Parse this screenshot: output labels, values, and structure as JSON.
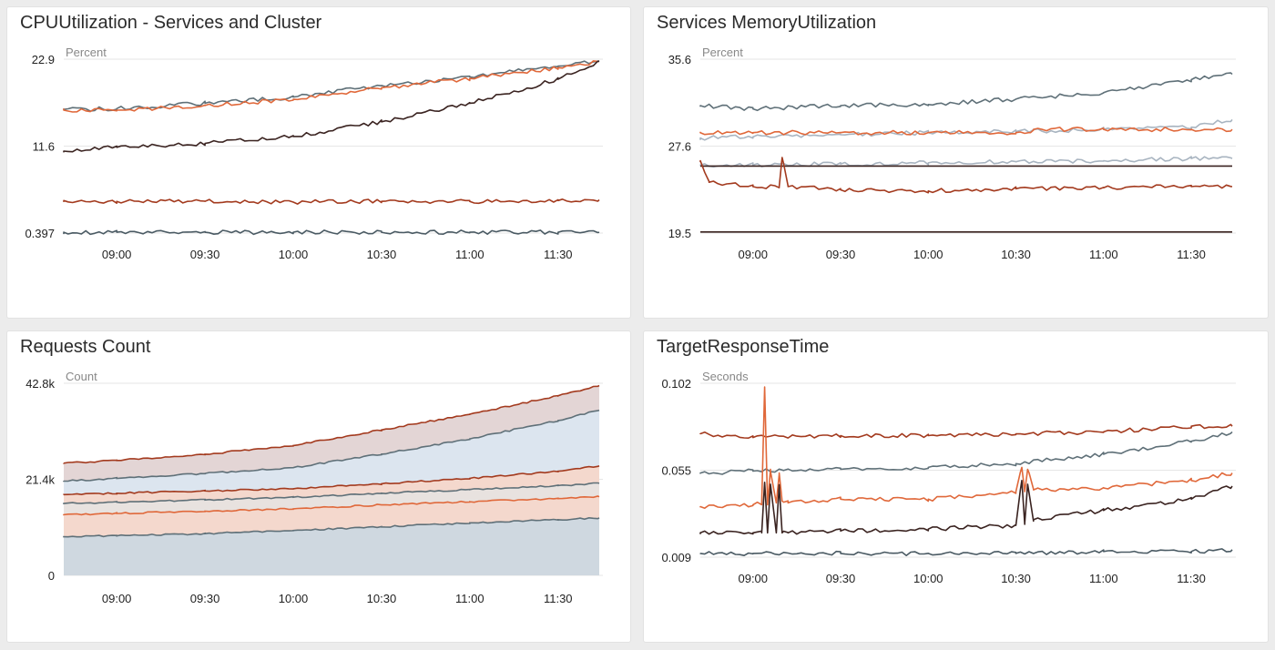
{
  "colors": {
    "page_bg": "#ececec",
    "panel_bg": "#ffffff",
    "grid": "#e6e6e6",
    "slate": "#5f7078",
    "orange": "#e0683a",
    "rust": "#a33a1e",
    "dark": "#3a2320",
    "steel": "#4a5a63",
    "light_slate": "#a8b4c0",
    "tick": "#222222",
    "unit": "#888888"
  },
  "x_ticks": [
    "09:00",
    "09:30",
    "10:00",
    "10:30",
    "11:00",
    "11:30"
  ],
  "panels": [
    {
      "title": "CPUUtilization - Services and Cluster",
      "chart_data": {
        "type": "line",
        "ylabel": "Percent",
        "y_ticks": [
          "22.9",
          "11.6",
          "0.397"
        ],
        "ylim": [
          0.397,
          22.9
        ],
        "x_range": [
          "08:42",
          "11:44"
        ],
        "series": [
          {
            "color": "#5f7078",
            "x": [
              "08:42",
              "09:00",
              "09:30",
              "10:00",
              "10:30",
              "11:00",
              "11:30",
              "11:44"
            ],
            "values": [
              16.4,
              16.5,
              17.2,
              18.0,
              19.5,
              20.6,
              22.0,
              22.7
            ]
          },
          {
            "color": "#e0683a",
            "x": [
              "08:42",
              "09:00",
              "09:30",
              "10:00",
              "10:30",
              "11:00",
              "11:30",
              "11:44"
            ],
            "values": [
              16.3,
              16.3,
              16.9,
              17.7,
              19.2,
              20.4,
              21.8,
              22.6
            ]
          },
          {
            "color": "#3a2320",
            "x": [
              "08:42",
              "09:00",
              "09:30",
              "10:00",
              "10:30",
              "11:00",
              "11:30",
              "11:44"
            ],
            "values": [
              11.0,
              11.5,
              12.0,
              12.9,
              14.8,
              17.2,
              20.3,
              22.6
            ]
          },
          {
            "color": "#a33a1e",
            "x": [
              "08:42",
              "09:00",
              "09:30",
              "10:00",
              "10:30",
              "11:00",
              "11:30",
              "11:44"
            ],
            "values": [
              4.6,
              4.5,
              4.5,
              4.4,
              4.5,
              4.5,
              4.6,
              4.7
            ]
          },
          {
            "color": "#4a5a63",
            "x": [
              "08:42",
              "09:00",
              "09:30",
              "10:00",
              "10:30",
              "11:00",
              "11:30",
              "11:44"
            ],
            "values": [
              0.5,
              0.5,
              0.5,
              0.5,
              0.5,
              0.5,
              0.5,
              0.5
            ]
          }
        ]
      }
    },
    {
      "title": "Services MemoryUtilization",
      "chart_data": {
        "type": "line",
        "ylabel": "Percent",
        "y_ticks": [
          "35.6",
          "27.6",
          "19.5"
        ],
        "ylim": [
          19.5,
          35.6
        ],
        "x_range": [
          "08:42",
          "11:44"
        ],
        "series": [
          {
            "color": "#5f7078",
            "x": [
              "08:42",
              "09:00",
              "09:30",
              "10:00",
              "10:30",
              "11:00",
              "11:30",
              "11:44"
            ],
            "values": [
              31.3,
              31.0,
              31.3,
              31.4,
              31.9,
              32.5,
              33.7,
              34.2
            ]
          },
          {
            "color": "#a8b4c0",
            "x": [
              "08:42",
              "09:00",
              "09:30",
              "10:00",
              "10:30",
              "11:00",
              "11:30",
              "11:44"
            ],
            "values": [
              28.3,
              28.4,
              28.6,
              28.8,
              28.9,
              29.1,
              29.3,
              30.0
            ]
          },
          {
            "color": "#e0683a",
            "x": [
              "08:42",
              "09:00",
              "09:30",
              "10:00",
              "10:30",
              "10:35",
              "10:36",
              "11:00",
              "11:30",
              "11:44"
            ],
            "values": [
              28.8,
              28.8,
              28.8,
              28.8,
              28.8,
              28.8,
              29.1,
              29.1,
              29.1,
              29.1
            ]
          },
          {
            "color": "#a8b4c0",
            "x": [
              "08:42",
              "09:00",
              "09:30",
              "10:00",
              "10:30",
              "11:00",
              "11:30",
              "11:44"
            ],
            "values": [
              25.8,
              25.8,
              25.9,
              26.0,
              26.1,
              26.2,
              26.4,
              26.4
            ]
          },
          {
            "color": "#3a2320",
            "x": [
              "08:42",
              "11:44"
            ],
            "values": [
              25.7,
              25.7
            ]
          },
          {
            "color": "#a33a1e",
            "x": [
              "08:42",
              "08:45",
              "09:00",
              "09:09",
              "09:10",
              "09:12",
              "09:30",
              "10:00",
              "10:30",
              "11:00",
              "11:30",
              "11:44"
            ],
            "values": [
              26.2,
              24.2,
              23.8,
              23.8,
              26.5,
              23.8,
              23.5,
              23.4,
              23.6,
              23.7,
              23.8,
              23.8
            ]
          },
          {
            "color": "#3a2320",
            "x": [
              "08:42",
              "11:44"
            ],
            "values": [
              19.6,
              19.6
            ]
          }
        ]
      }
    },
    {
      "title": "Requests Count",
      "chart_data": {
        "type": "area",
        "ylabel": "Count",
        "y_ticks": [
          "42.8k",
          "21.4k",
          "0"
        ],
        "ylim": [
          0,
          42800
        ],
        "x_range": [
          "08:42",
          "11:44"
        ],
        "stacked_totals": [
          {
            "color": "#5f7078",
            "fill": "#cfd8e0",
            "x": [
              "08:42",
              "09:00",
              "09:30",
              "10:00",
              "10:30",
              "11:00",
              "11:30",
              "11:44"
            ],
            "values": [
              8600,
              8800,
              9300,
              10000,
              10800,
              11700,
              12400,
              12800
            ]
          },
          {
            "color": "#e0683a",
            "fill": "#f4d8cd",
            "x": [
              "08:42",
              "09:00",
              "09:30",
              "10:00",
              "10:30",
              "11:00",
              "11:30",
              "11:44"
            ],
            "values": [
              13500,
              13800,
              14300,
              14800,
              15700,
              16400,
              17100,
              17500
            ]
          },
          {
            "color": "#5f7078",
            "fill": "#e8e2df",
            "x": [
              "08:42",
              "09:00",
              "09:30",
              "10:00",
              "10:30",
              "11:00",
              "11:30",
              "11:44"
            ],
            "values": [
              16000,
              16300,
              16800,
              17400,
              18300,
              19100,
              20000,
              20500
            ]
          },
          {
            "color": "#a33a1e",
            "fill": "#f4d8cd",
            "x": [
              "08:42",
              "09:00",
              "09:30",
              "10:00",
              "10:30",
              "11:00",
              "11:30",
              "11:44"
            ],
            "values": [
              18000,
              18300,
              18800,
              19300,
              20400,
              21600,
              23200,
              24400
            ]
          },
          {
            "color": "#5f7078",
            "fill": "#dce5ef",
            "x": [
              "08:42",
              "09:00",
              "09:30",
              "10:00",
              "10:30",
              "11:00",
              "11:30",
              "11:44"
            ],
            "values": [
              21000,
              21600,
              22700,
              24000,
              27000,
              30400,
              34500,
              36800
            ]
          },
          {
            "color": "#a33a1e",
            "fill": "#e3d5d5",
            "x": [
              "08:42",
              "09:00",
              "09:30",
              "10:00",
              "10:30",
              "11:00",
              "11:30",
              "11:44"
            ],
            "values": [
              25000,
              25600,
              27000,
              28900,
              32400,
              35900,
              40000,
              42300
            ]
          }
        ]
      }
    },
    {
      "title": "TargetResponseTime",
      "chart_data": {
        "type": "line",
        "ylabel": "Seconds",
        "y_ticks": [
          "0.102",
          "0.055",
          "0.009"
        ],
        "ylim": [
          0.009,
          0.102
        ],
        "x_range": [
          "08:42",
          "11:44"
        ],
        "series": [
          {
            "color": "#a33a1e",
            "x": [
              "08:42",
              "09:00",
              "09:30",
              "10:00",
              "10:30",
              "11:00",
              "11:30",
              "11:44"
            ],
            "values": [
              0.075,
              0.073,
              0.074,
              0.074,
              0.075,
              0.076,
              0.079,
              0.079
            ]
          },
          {
            "color": "#5f7078",
            "x": [
              "08:42",
              "09:00",
              "09:30",
              "10:00",
              "10:30",
              "11:00",
              "11:30",
              "11:44"
            ],
            "values": [
              0.054,
              0.055,
              0.056,
              0.057,
              0.059,
              0.064,
              0.071,
              0.076
            ]
          },
          {
            "color": "#e0683a",
            "x": [
              "08:42",
              "09:00",
              "09:03",
              "09:04",
              "09:05",
              "09:06",
              "09:08",
              "09:09",
              "09:10",
              "09:12",
              "09:30",
              "10:00",
              "10:30",
              "10:32",
              "10:33",
              "10:34",
              "10:36",
              "11:00",
              "11:30",
              "11:44"
            ],
            "values": [
              0.036,
              0.037,
              0.038,
              0.1,
              0.037,
              0.055,
              0.038,
              0.054,
              0.039,
              0.038,
              0.04,
              0.04,
              0.044,
              0.057,
              0.044,
              0.056,
              0.045,
              0.046,
              0.05,
              0.054
            ]
          },
          {
            "color": "#3a2320",
            "x": [
              "08:42",
              "09:00",
              "09:03",
              "09:04",
              "09:05",
              "09:06",
              "09:08",
              "09:09",
              "09:10",
              "09:12",
              "09:30",
              "10:00",
              "10:30",
              "10:32",
              "10:33",
              "10:34",
              "10:36",
              "11:00",
              "11:30",
              "11:44"
            ],
            "values": [
              0.022,
              0.022,
              0.022,
              0.049,
              0.022,
              0.048,
              0.022,
              0.047,
              0.022,
              0.022,
              0.023,
              0.024,
              0.026,
              0.05,
              0.027,
              0.048,
              0.029,
              0.034,
              0.04,
              0.047
            ]
          },
          {
            "color": "#4a5a63",
            "x": [
              "08:42",
              "09:00",
              "09:30",
              "10:00",
              "10:30",
              "11:00",
              "11:30",
              "11:44"
            ],
            "values": [
              0.011,
              0.011,
              0.011,
              0.011,
              0.011,
              0.012,
              0.012,
              0.013
            ]
          }
        ]
      }
    }
  ]
}
